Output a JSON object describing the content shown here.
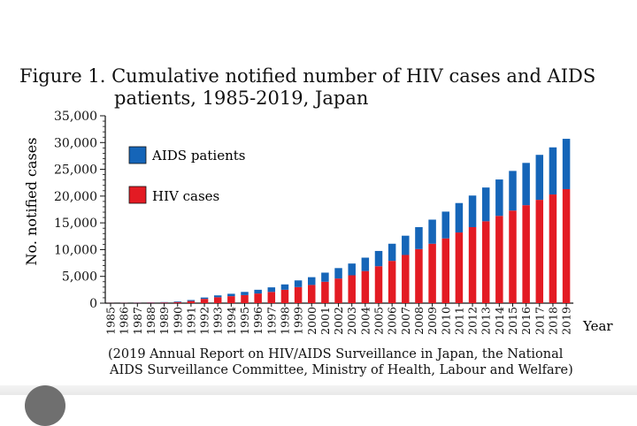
{
  "figure": {
    "title_line1": "Figure 1. Cumulative notified number of HIV cases and AIDS",
    "title_line2": "patients, 1985-2019, Japan",
    "source_line1": "(2019 Annual Report on HIV/AIDS Surveillance in Japan, the National",
    "source_line2": "AIDS Surveillance Committee, Ministry of Health, Labour and Welfare)"
  },
  "colors": {
    "hiv": "#e31b23",
    "aids": "#1565b8",
    "axis": "#111111"
  },
  "chart_data": {
    "type": "bar",
    "stacked": true,
    "ylabel": "No. notified cases",
    "xlabel": "Year",
    "ylim": [
      0,
      35000
    ],
    "yticks": [
      0,
      5000,
      10000,
      15000,
      20000,
      25000,
      30000,
      35000
    ],
    "ytick_labels": [
      "0",
      "5,000",
      "10,000",
      "15,000",
      "20,000",
      "25,000",
      "30,000",
      "35,000"
    ],
    "legend_position": "upper-left",
    "categories": [
      "1985",
      "1986",
      "1987",
      "1988",
      "1989",
      "1990",
      "1991",
      "1992",
      "1993",
      "1994",
      "1995",
      "1996",
      "1997",
      "1998",
      "1999",
      "2000",
      "2001",
      "2002",
      "2003",
      "2004",
      "2005",
      "2006",
      "2007",
      "2008",
      "2009",
      "2010",
      "2011",
      "2012",
      "2013",
      "2014",
      "2015",
      "2016",
      "2017",
      "2018",
      "2019"
    ],
    "series": [
      {
        "name": "HIV cases",
        "color": "#e31b23",
        "values": [
          20,
          40,
          60,
          80,
          120,
          200,
          400,
          800,
          1100,
          1300,
          1500,
          1800,
          2100,
          2500,
          3000,
          3400,
          4000,
          4600,
          5200,
          6000,
          6900,
          7900,
          9000,
          10100,
          11100,
          12100,
          13200,
          14200,
          15300,
          16300,
          17300,
          18300,
          19300,
          20300,
          21300
        ]
      },
      {
        "name": "AIDS patients",
        "color": "#1565b8",
        "values": [
          10,
          20,
          40,
          60,
          80,
          120,
          180,
          250,
          350,
          450,
          600,
          700,
          850,
          1000,
          1250,
          1450,
          1700,
          1950,
          2200,
          2500,
          2850,
          3200,
          3600,
          4100,
          4500,
          5000,
          5500,
          5900,
          6300,
          6800,
          7400,
          7900,
          8400,
          8800,
          9400
        ]
      }
    ]
  }
}
